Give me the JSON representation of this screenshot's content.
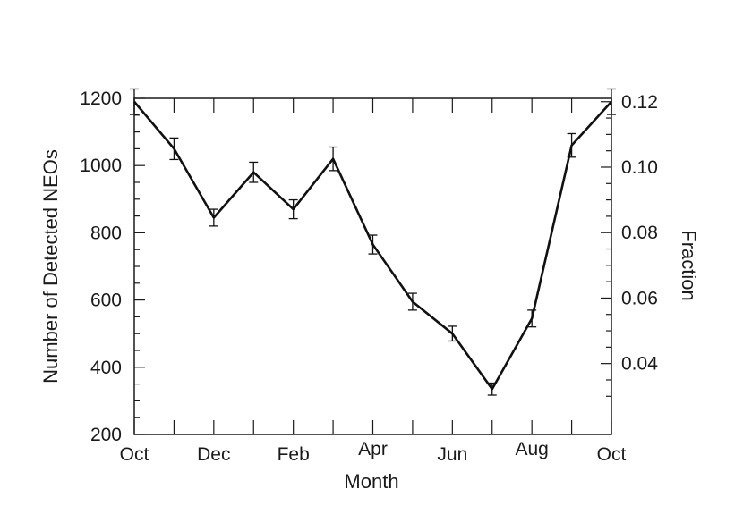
{
  "chart_data": {
    "type": "line",
    "xlabel": "Month",
    "ylabel": "Number of Detected NEOs",
    "y2label": "Fraction",
    "x_tick_labels": [
      "Oct",
      "Dec",
      "Feb",
      "Apr",
      "Jun",
      "Aug",
      "Oct"
    ],
    "x_tick_positions": [
      0,
      2,
      4,
      6,
      8,
      10,
      12
    ],
    "ylim": [
      200,
      1200
    ],
    "y_ticks": [
      200,
      400,
      600,
      800,
      1000,
      1200
    ],
    "y2_ticks": [
      0.04,
      0.06,
      0.08,
      0.1,
      0.12
    ],
    "y2_tick_labels": [
      "0.04",
      "0.06",
      "0.08",
      "0.10",
      "0.12"
    ],
    "y2_to_y": {
      "at_0_04": 411,
      "at_0_12": 1190
    },
    "series": [
      {
        "x": [
          0,
          1,
          2,
          3,
          4,
          5,
          6,
          7,
          8,
          9,
          10,
          11,
          12
        ],
        "values": [
          1190,
          1050,
          845,
          980,
          870,
          1020,
          765,
          595,
          500,
          335,
          545,
          1060,
          1190
        ],
        "errors": [
          38,
          32,
          25,
          30,
          28,
          35,
          28,
          25,
          22,
          18,
          25,
          35,
          38
        ]
      }
    ]
  },
  "colors": {
    "line": "#111111",
    "axis": "#1a1a1a",
    "background": "#ffffff"
  }
}
